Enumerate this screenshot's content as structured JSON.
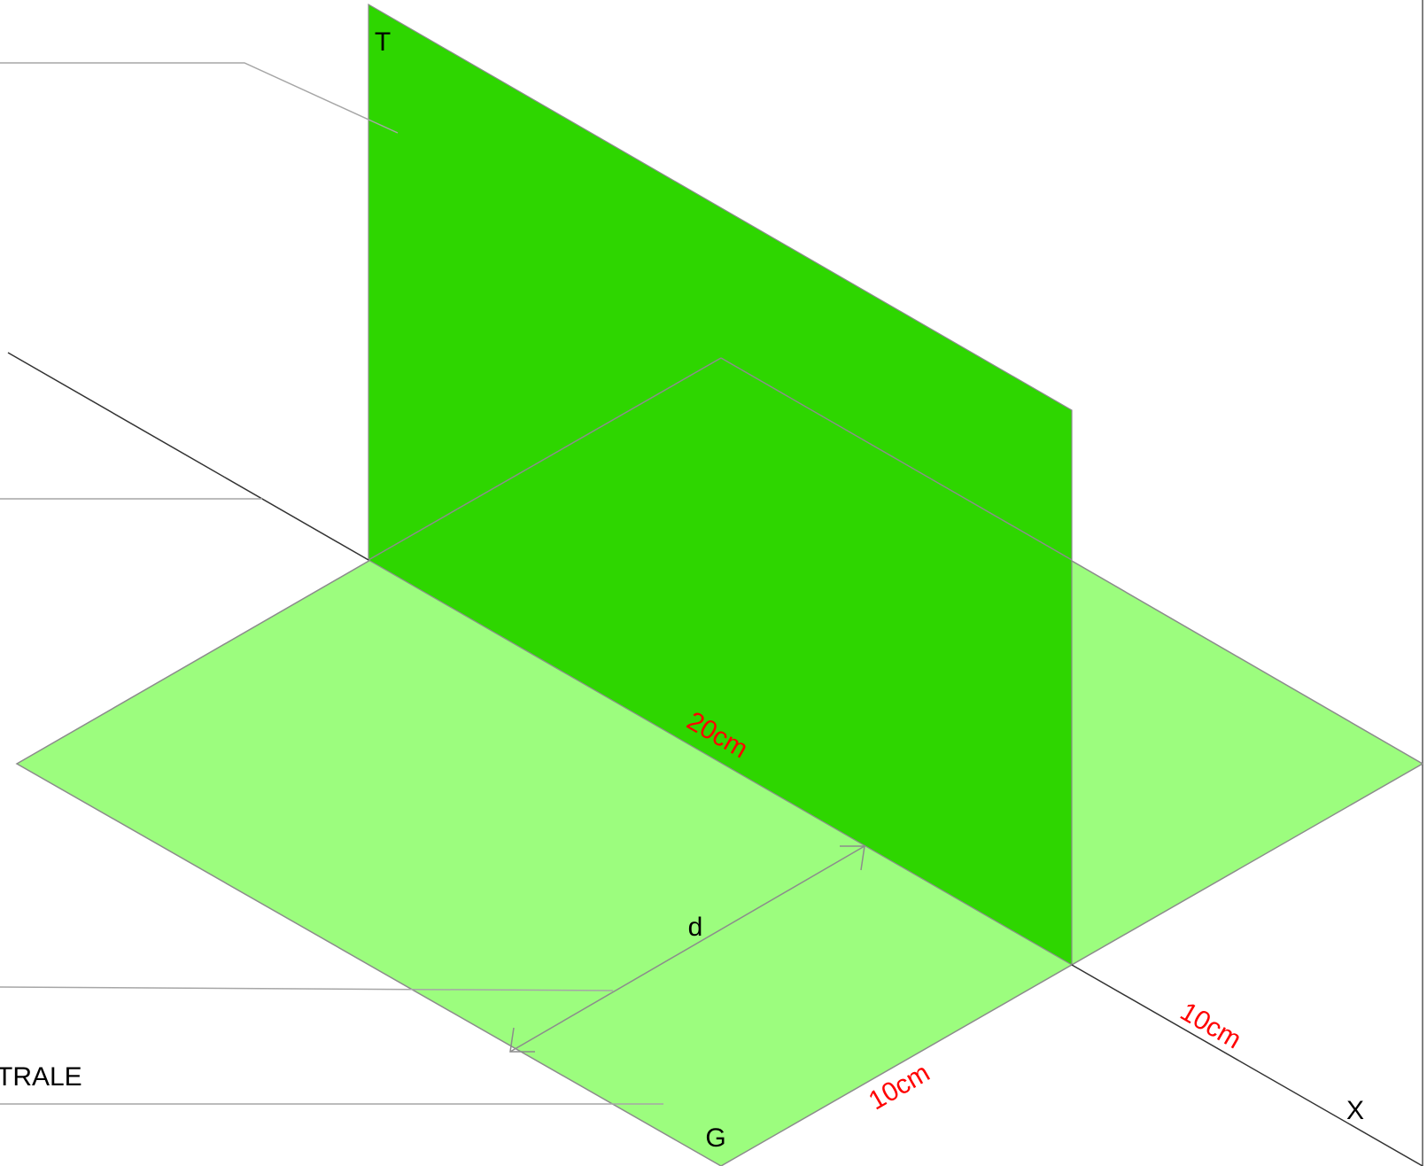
{
  "labels": {
    "plane_label": "T",
    "ground_label": "G",
    "axis_label": "X",
    "distance_label": "d",
    "partial_label": "TRALE"
  },
  "dimensions": {
    "length": "20cm",
    "width_front": "10cm",
    "width_back": "10cm"
  },
  "colors": {
    "vertical_plane": "#2ED600",
    "ground_plane": "#9CFD7E",
    "outline": "#8c8c8c",
    "axis_line": "#333333",
    "leader_line": "#a6a6a6",
    "dimension_text": "#ff0000",
    "label_text": "#000000"
  }
}
